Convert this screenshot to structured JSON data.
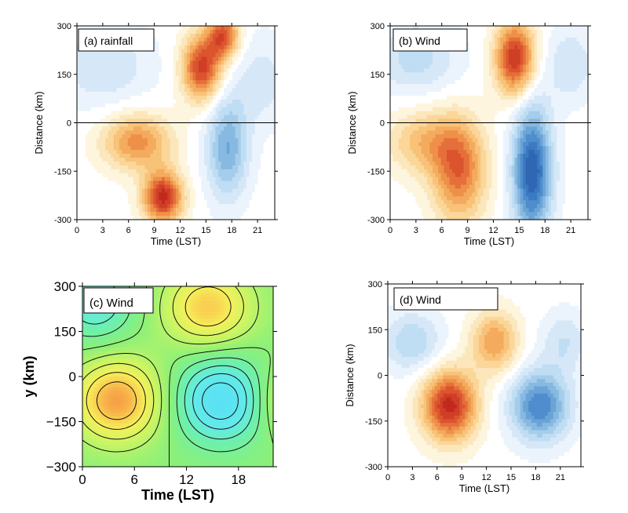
{
  "chart_data": [
    {
      "type": "heatmap",
      "panel_label": "(a) rainfall",
      "xlabel": "Time (LST)",
      "ylabel": "Distance (km)",
      "x_ticks": [
        0,
        3,
        6,
        9,
        12,
        15,
        18,
        21
      ],
      "y_ticks": [
        -300,
        -150,
        0,
        150,
        300
      ],
      "xlim": [
        0,
        23
      ],
      "ylim": [
        -300,
        300
      ],
      "zero_line": true,
      "palette": "blue-white-red",
      "features": [
        {
          "sign": "positive",
          "t": 10.0,
          "y": -230,
          "st": 1.6,
          "sy": 55,
          "amp": 1.0
        },
        {
          "sign": "positive",
          "t": 7.0,
          "y": -60,
          "st": 2.8,
          "sy": 60,
          "amp": 0.6
        },
        {
          "sign": "positive",
          "t": 14.5,
          "y": 170,
          "st": 1.6,
          "sy": 70,
          "amp": 0.9
        },
        {
          "sign": "positive",
          "t": 17.0,
          "y": 270,
          "st": 1.3,
          "sy": 50,
          "amp": 0.8
        },
        {
          "sign": "negative",
          "t": 17.5,
          "y": -80,
          "st": 1.7,
          "sy": 110,
          "amp": 0.55
        },
        {
          "sign": "negative",
          "t": 3.0,
          "y": 180,
          "st": 4.0,
          "sy": 90,
          "amp": 0.25
        },
        {
          "sign": "negative",
          "t": 21.5,
          "y": 130,
          "st": 2.5,
          "sy": 100,
          "amp": 0.2
        }
      ]
    },
    {
      "type": "heatmap",
      "panel_label": "(b) Wind",
      "xlabel": "Time (LST)",
      "ylabel": "Distance (km)",
      "x_ticks": [
        0,
        3,
        6,
        9,
        12,
        15,
        18,
        21
      ],
      "y_ticks": [
        -300,
        -150,
        0,
        150,
        300
      ],
      "xlim": [
        0,
        23
      ],
      "ylim": [
        -300,
        300
      ],
      "zero_line": true,
      "palette": "blue-white-red",
      "features": [
        {
          "sign": "positive",
          "t": 8.0,
          "y": -150,
          "st": 2.2,
          "sy": 110,
          "amp": 0.7
        },
        {
          "sign": "positive",
          "t": 4.0,
          "y": -60,
          "st": 3.0,
          "sy": 70,
          "amp": 0.4
        },
        {
          "sign": "positive",
          "t": 14.5,
          "y": 200,
          "st": 1.6,
          "sy": 80,
          "amp": 0.95
        },
        {
          "sign": "negative",
          "t": 16.5,
          "y": -150,
          "st": 1.6,
          "sy": 140,
          "amp": 0.95
        },
        {
          "sign": "negative",
          "t": 3.0,
          "y": 200,
          "st": 3.5,
          "sy": 80,
          "amp": 0.3
        },
        {
          "sign": "negative",
          "t": 21.0,
          "y": 180,
          "st": 2.0,
          "sy": 80,
          "amp": 0.25
        }
      ]
    },
    {
      "type": "contour",
      "panel_label": "(c) Wind",
      "xlabel": "Time (LST)",
      "ylabel": "y (km)",
      "x_ticks": [
        0,
        6,
        12,
        18
      ],
      "y_ticks": [
        -300,
        -150,
        0,
        150,
        300
      ],
      "y_tick_labels": [
        "−300",
        "−150",
        "0",
        "150",
        "300"
      ],
      "xlim": [
        0,
        22
      ],
      "ylim": [
        -300,
        300
      ],
      "palette": "cyan-green-yellow-orange",
      "features": [
        {
          "sign": "positive",
          "t": 4.0,
          "y": -80,
          "st": 3.5,
          "sy": 95,
          "amp": 1.0
        },
        {
          "sign": "positive",
          "t": 14.5,
          "y": 230,
          "st": 3.5,
          "sy": 90,
          "amp": 0.8
        },
        {
          "sign": "negative",
          "t": 16.0,
          "y": -80,
          "st": 3.5,
          "sy": 95,
          "amp": 1.0
        },
        {
          "sign": "negative",
          "t": 1.5,
          "y": 250,
          "st": 3.0,
          "sy": 90,
          "amp": 0.6
        },
        {
          "sign": "positive",
          "t": 23.0,
          "y": -80,
          "st": 2.5,
          "sy": 80,
          "amp": 0.4
        }
      ]
    },
    {
      "type": "heatmap",
      "panel_label": "(d) Wind",
      "xlabel": "Time (LST)",
      "ylabel": "Distance (km)",
      "x_ticks": [
        0,
        3,
        6,
        9,
        12,
        15,
        18,
        21
      ],
      "y_ticks": [
        -300,
        -150,
        0,
        150,
        300
      ],
      "xlim": [
        0,
        23.5
      ],
      "ylim": [
        -300,
        300
      ],
      "zero_line": false,
      "palette": "blue-white-red",
      "features": [
        {
          "sign": "positive",
          "t": 7.5,
          "y": -100,
          "st": 2.3,
          "sy": 80,
          "amp": 1.0
        },
        {
          "sign": "positive",
          "t": 13.0,
          "y": 110,
          "st": 2.0,
          "sy": 70,
          "amp": 0.55
        },
        {
          "sign": "negative",
          "t": 18.5,
          "y": -100,
          "st": 2.5,
          "sy": 80,
          "amp": 0.75
        },
        {
          "sign": "negative",
          "t": 3.0,
          "y": 110,
          "st": 2.5,
          "sy": 70,
          "amp": 0.35
        },
        {
          "sign": "negative",
          "t": 21.5,
          "y": 110,
          "st": 2.0,
          "sy": 70,
          "amp": 0.25
        }
      ]
    }
  ]
}
